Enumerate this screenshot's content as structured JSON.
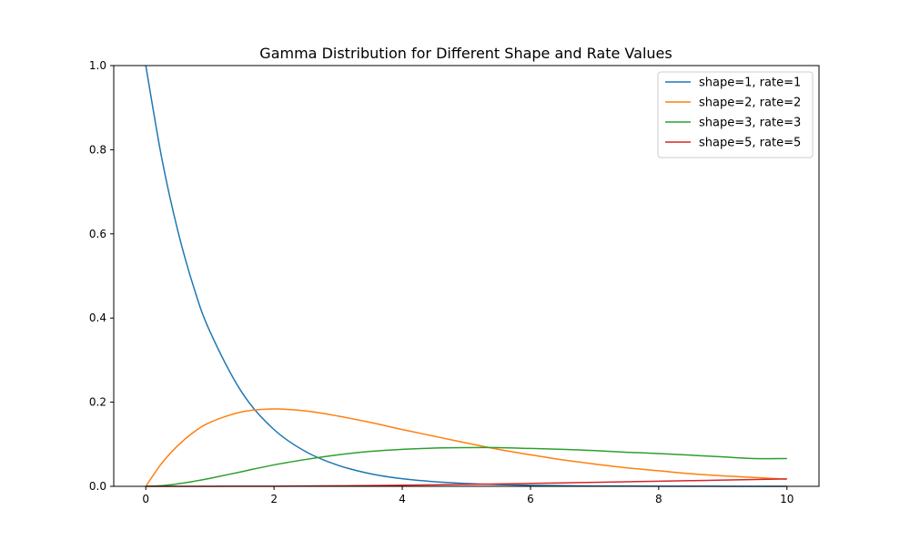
{
  "chart_data": {
    "type": "line",
    "title": "Gamma Distribution for Different Shape and Rate Values",
    "xlabel": "",
    "ylabel": "",
    "xlim": [
      -0.5,
      10.5
    ],
    "ylim": [
      0.0,
      1.0
    ],
    "x_ticks": [
      0,
      2,
      4,
      6,
      8,
      10
    ],
    "y_ticks": [
      0.0,
      0.2,
      0.4,
      0.6,
      0.8,
      1.0
    ],
    "x_tick_labels": [
      "0",
      "2",
      "4",
      "6",
      "8",
      "10"
    ],
    "y_tick_labels": [
      "0.0",
      "0.2",
      "0.4",
      "0.6",
      "0.8",
      "1.0"
    ],
    "grid": false,
    "legend_position": "top-right",
    "x": [
      0,
      0.25,
      0.5,
      0.75,
      1,
      1.5,
      2,
      2.5,
      3,
      3.5,
      4,
      4.5,
      5,
      5.5,
      6,
      6.5,
      7,
      7.5,
      8,
      8.5,
      9,
      9.5,
      10
    ],
    "series": [
      {
        "name": "shape=1, rate=1",
        "color": "#1f77b4",
        "values": [
          1.0,
          0.779,
          0.607,
          0.472,
          0.368,
          0.223,
          0.135,
          0.082,
          0.05,
          0.03,
          0.018,
          0.011,
          0.0067,
          0.0041,
          0.0025,
          0.0015,
          0.0009,
          0.0006,
          0.0003,
          0.0002,
          0.0001,
          0.0001,
          0.0
        ]
      },
      {
        "name": "shape=2, rate=2",
        "color": "#ff7f0e",
        "values": [
          0.0,
          0.055,
          0.097,
          0.129,
          0.152,
          0.177,
          0.184,
          0.179,
          0.167,
          0.152,
          0.135,
          0.119,
          0.103,
          0.088,
          0.075,
          0.063,
          0.053,
          0.044,
          0.037,
          0.03,
          0.025,
          0.021,
          0.017
        ]
      },
      {
        "name": "shape=3, rate=3",
        "color": "#2ca02c",
        "values": [
          0.0,
          0.0016,
          0.006,
          0.012,
          0.019,
          0.035,
          0.051,
          0.064,
          0.075,
          0.083,
          0.088,
          0.091,
          0.092,
          0.092,
          0.09,
          0.088,
          0.085,
          0.081,
          0.078,
          0.074,
          0.07,
          0.066,
          0.066
        ]
      },
      {
        "name": "shape=5, rate=5",
        "color": "#d62728",
        "values": [
          0.0,
          0.0,
          0.0,
          0.0,
          0.0001,
          0.0002,
          0.0004,
          0.0008,
          0.0013,
          0.0019,
          0.0027,
          0.0036,
          0.0046,
          0.0057,
          0.0069,
          0.0082,
          0.0095,
          0.0108,
          0.0121,
          0.0135,
          0.0149,
          0.0162,
          0.0175
        ]
      }
    ]
  }
}
